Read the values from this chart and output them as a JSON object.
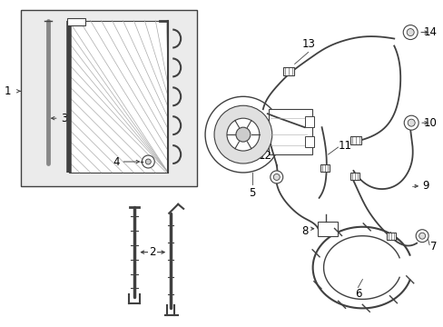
{
  "background_color": "#ffffff",
  "line_color": "#404040",
  "label_color": "#000000",
  "font_size": 8.5,
  "box_bg": "#ebebeb",
  "hatch_color": "#aaaaaa"
}
